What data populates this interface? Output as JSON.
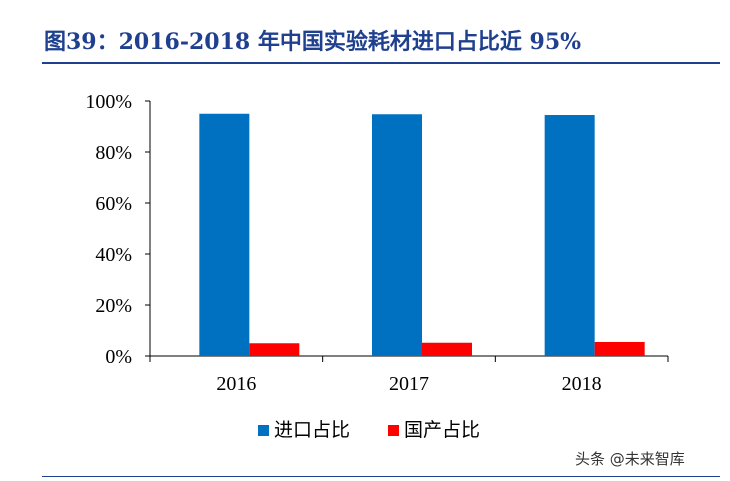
{
  "title": "图39：2016-2018 年中国实验耗材进口占比近 95%",
  "watermark": "头条 @未来智库",
  "chart_data": {
    "type": "bar",
    "title": "",
    "xlabel": "",
    "ylabel": "",
    "categories": [
      "2016",
      "2017",
      "2018"
    ],
    "series": [
      {
        "name": "进口占比",
        "color": "#0070c0",
        "values": [
          95,
          94.8,
          94.5
        ]
      },
      {
        "name": "国产占比",
        "color": "#ff0000",
        "values": [
          5,
          5.2,
          5.5
        ]
      }
    ],
    "ylim": [
      0,
      100
    ],
    "yticks": [
      "0%",
      "20%",
      "40%",
      "60%",
      "80%",
      "100%"
    ],
    "grid": false,
    "legend": "bottom"
  }
}
